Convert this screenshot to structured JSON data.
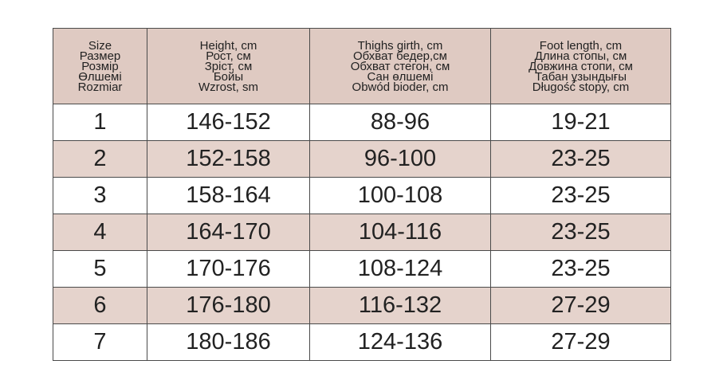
{
  "table": {
    "header": [
      [
        "Size",
        "Размер",
        "Розмір",
        "Өлшемі",
        "Rozmiar"
      ],
      [
        "Height, cm",
        "Рост, см",
        "Зріст, см",
        "Бойы",
        "Wzrost, sm"
      ],
      [
        "Thighs girth, cm",
        "Обхват бедер,см",
        "Обхват стегон, см",
        "Сан өлшемі",
        "Obwód bioder, cm"
      ],
      [
        "Foot length, cm",
        "Длина стопы, см",
        "Довжина стопи, см",
        "Табан ұзындығы",
        "Długość stopy, cm"
      ]
    ],
    "rows": [
      [
        "1",
        "146-152",
        "88-96",
        "19-21"
      ],
      [
        "2",
        "152-158",
        "96-100",
        "23-25"
      ],
      [
        "3",
        "158-164",
        "100-108",
        "23-25"
      ],
      [
        "4",
        "164-170",
        "104-116",
        "23-25"
      ],
      [
        "5",
        "170-176",
        "108-124",
        "23-25"
      ],
      [
        "6",
        "176-180",
        "116-132",
        "27-29"
      ],
      [
        "7",
        "180-186",
        "124-136",
        "27-29"
      ]
    ]
  }
}
